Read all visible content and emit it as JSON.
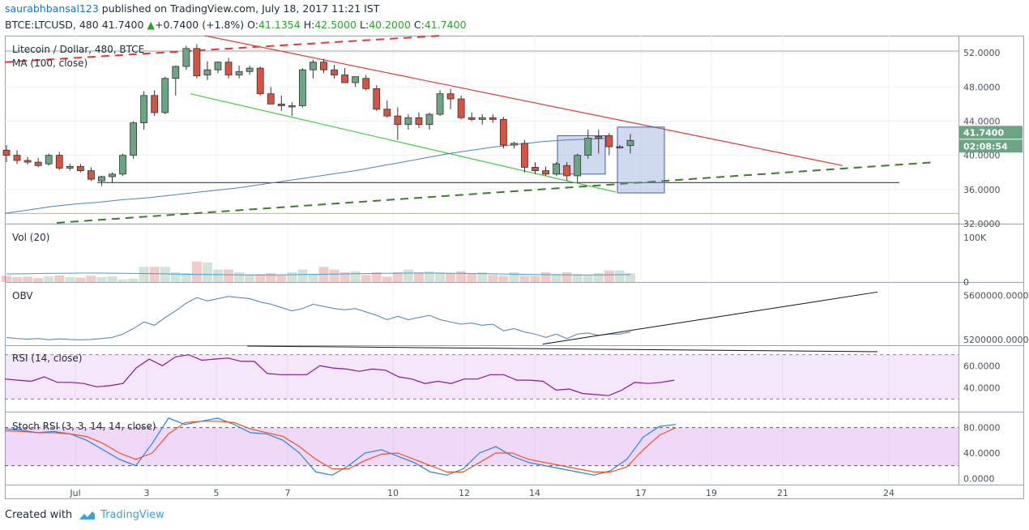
{
  "header": {
    "user": "saurabhbansal123",
    "published": " published on TradingView.com, July 18, 2017 11:21 IST",
    "symbol": "BTCE:LTCUSD, 480",
    "price": "41.7400",
    "change_arrow": "▲",
    "change": "+0.7400 (+1.8%)",
    "o_label": "O:",
    "o_val": "41.1354",
    "h_label": "H:",
    "h_val": "42.5000",
    "l_label": "L:",
    "l_val": "40.2000",
    "c_label": "C:",
    "c_val": "41.7400"
  },
  "footer": {
    "created": "Created with",
    "brand": "TradingView"
  },
  "colors": {
    "bull": "#6ba583",
    "bear": "#d75442",
    "accent": "#27a327",
    "ma": "#4a84b4",
    "rsi": "#8e1599",
    "stoch_k": "#1e88e5",
    "stoch_d": "#f4511e"
  },
  "chart_data": [
    {
      "type": "candlestick",
      "title": "Litecoin / Dollar, 480, BTCE",
      "indicator": "MA (100, close)",
      "x_ticks": [
        "Jul",
        "3",
        "5",
        "7",
        "10",
        "12",
        "14",
        "17",
        "19",
        "21",
        "24"
      ],
      "y_ticks": [
        "52.0000",
        "48.0000",
        "44.0000",
        "40.0000",
        "36.0000",
        "32.0000"
      ],
      "ylim": [
        32,
        54
      ],
      "last_price_label": "41.7400",
      "countdown_label": "02:08:54",
      "candles": [
        [
          40.6,
          41.2,
          39.2,
          40.0
        ],
        [
          40.0,
          40.6,
          39.0,
          39.4
        ],
        [
          39.4,
          39.8,
          38.9,
          39.2
        ],
        [
          39.2,
          39.7,
          38.6,
          38.8
        ],
        [
          39.0,
          40.2,
          38.8,
          40.0
        ],
        [
          40.0,
          40.4,
          38.3,
          38.5
        ],
        [
          38.5,
          39.0,
          38.2,
          38.7
        ],
        [
          38.7,
          39.0,
          38.0,
          38.2
        ],
        [
          38.2,
          38.6,
          37.0,
          37.2
        ],
        [
          37.0,
          37.6,
          36.4,
          37.5
        ],
        [
          37.5,
          38.0,
          36.8,
          37.8
        ],
        [
          37.8,
          40.2,
          37.6,
          40.0
        ],
        [
          40.0,
          44.0,
          39.6,
          43.8
        ],
        [
          43.8,
          47.5,
          43.0,
          47.0
        ],
        [
          47.0,
          47.6,
          44.6,
          45.0
        ],
        [
          45.0,
          49.2,
          44.8,
          49.0
        ],
        [
          49.0,
          50.5,
          47.0,
          50.4
        ],
        [
          50.4,
          52.8,
          50.0,
          52.5
        ],
        [
          52.5,
          53.0,
          49.0,
          49.3
        ],
        [
          49.4,
          51.0,
          48.8,
          50.0
        ],
        [
          50.0,
          51.0,
          49.6,
          50.9
        ],
        [
          50.9,
          51.4,
          49.0,
          49.4
        ],
        [
          49.4,
          50.5,
          49.0,
          49.8
        ],
        [
          49.8,
          50.5,
          49.4,
          50.2
        ],
        [
          50.2,
          50.4,
          47.0,
          47.2
        ],
        [
          47.2,
          48.0,
          46.0,
          46.0
        ],
        [
          46.0,
          47.0,
          45.2,
          45.8
        ],
        [
          45.8,
          46.2,
          44.6,
          45.8
        ],
        [
          45.8,
          50.2,
          45.6,
          50.0
        ],
        [
          50.0,
          51.2,
          49.0,
          50.9
        ],
        [
          50.9,
          51.3,
          49.6,
          50.0
        ],
        [
          50.0,
          50.6,
          49.0,
          49.4
        ],
        [
          49.4,
          50.2,
          48.6,
          48.5
        ],
        [
          48.5,
          49.0,
          48.0,
          49.2
        ],
        [
          49.0,
          49.4,
          47.6,
          47.8
        ],
        [
          47.8,
          48.2,
          45.2,
          45.4
        ],
        [
          45.4,
          46.4,
          44.4,
          44.6
        ],
        [
          44.6,
          45.6,
          41.8,
          43.6
        ],
        [
          43.6,
          44.8,
          43.0,
          44.4
        ],
        [
          44.4,
          45.0,
          43.2,
          43.6
        ],
        [
          43.6,
          45.0,
          43.0,
          44.8
        ],
        [
          44.8,
          47.6,
          44.6,
          47.2
        ],
        [
          47.2,
          47.8,
          45.4,
          46.6
        ],
        [
          46.6,
          47.0,
          44.2,
          44.4
        ],
        [
          44.4,
          45.0,
          44.0,
          44.2
        ],
        [
          44.2,
          44.8,
          43.6,
          44.4
        ],
        [
          44.4,
          44.8,
          43.8,
          44.2
        ],
        [
          44.2,
          44.5,
          40.8,
          41.2
        ],
        [
          41.2,
          41.6,
          40.8,
          41.4
        ],
        [
          41.4,
          41.8,
          38.0,
          38.6
        ],
        [
          38.6,
          39.2,
          37.8,
          38.2
        ],
        [
          38.2,
          38.7,
          37.6,
          37.8
        ],
        [
          37.8,
          39.2,
          37.6,
          39.0
        ],
        [
          38.8,
          39.2,
          37.0,
          37.6
        ],
        [
          37.6,
          40.2,
          36.8,
          40.0
        ],
        [
          40.0,
          43.0,
          39.6,
          42.0
        ],
        [
          42.0,
          43.0,
          40.2,
          42.2
        ],
        [
          42.3,
          42.6,
          40.0,
          41.0
        ],
        [
          41.0,
          41.2,
          40.8,
          41.0
        ],
        [
          41.1354,
          42.5,
          40.2,
          41.74
        ]
      ],
      "volume": {
        "label": "Vol (20)",
        "y_ticks": [
          "100K",
          "0"
        ],
        "values": [
          14,
          11,
          12,
          9,
          13,
          15,
          11,
          10,
          14,
          11,
          13,
          6,
          8,
          34,
          34,
          34,
          22,
          20,
          46,
          44,
          28,
          28,
          22,
          17,
          18,
          20,
          15,
          22,
          28,
          18,
          34,
          28,
          22,
          24,
          16,
          22,
          12,
          22,
          28,
          22,
          24,
          22,
          20,
          24,
          20,
          22,
          16,
          14,
          22,
          14,
          14,
          22,
          18,
          22,
          18,
          16,
          20,
          26,
          26,
          20
        ]
      },
      "obv": {
        "label": "OBV",
        "y_ticks": [
          "5600000.0000",
          "5200000.0000"
        ]
      },
      "rsi": {
        "label": "RSI (14, close)",
        "y_ticks": [
          "60.0000",
          "40.0000"
        ]
      },
      "stoch_rsi": {
        "label": "Stoch RSI (3, 3, 14, 14, close)",
        "y_ticks": [
          "80.0000",
          "40.0000",
          "0.0000"
        ]
      }
    }
  ]
}
